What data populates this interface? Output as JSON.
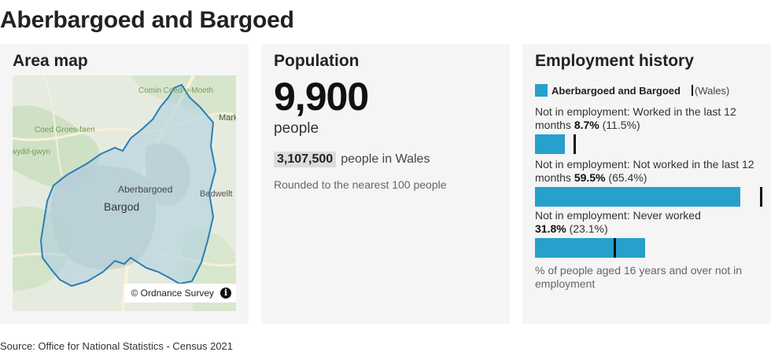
{
  "title": "Aberbargoed and Bargoed",
  "map_card": {
    "heading": "Area map",
    "attribution": "© Ordnance Survey",
    "info_icon": "info-icon",
    "labels": {
      "comin": "Comin Coed-y-Moeth",
      "markham": "Markh",
      "coed_groes": "Coed Groes-faen",
      "wydd": "wydd-gwyn",
      "bedwellt": "Bedwellt",
      "aberbargoed": "Aberbargoed",
      "bargod": "Bargod"
    }
  },
  "population_card": {
    "heading": "Population",
    "value": "9,900",
    "unit": "people",
    "wales_value": "3,107,500",
    "wales_label": "people in Wales",
    "note": "Rounded to the nearest 100 people"
  },
  "employment_card": {
    "heading": "Employment history",
    "legend_area": "Aberbargoed and Bargoed",
    "legend_wales": "(Wales)",
    "colors": {
      "area_bar": "#27a0cc",
      "wales_marker": "#111111"
    },
    "chart_data": {
      "type": "bar",
      "orientation": "horizontal",
      "categories": [
        "Not in employment: Worked in the last 12 months",
        "Not in employment: Not worked in the last 12 months",
        "Not in employment: Never worked"
      ],
      "series": [
        {
          "name": "Aberbargoed and Bargoed",
          "values": [
            8.7,
            59.5,
            31.8
          ]
        },
        {
          "name": "Wales",
          "values": [
            11.5,
            65.4,
            23.1
          ]
        }
      ],
      "value_labels": [
        "8.7%",
        "59.5%",
        "31.8%"
      ],
      "wales_labels": [
        "(11.5%)",
        "(65.4%)",
        "(23.1%)"
      ],
      "xlim": [
        0,
        66
      ]
    },
    "footnote": "% of people aged 16 years and over not in employment"
  },
  "source": "Source: Office for National Statistics - Census 2021"
}
